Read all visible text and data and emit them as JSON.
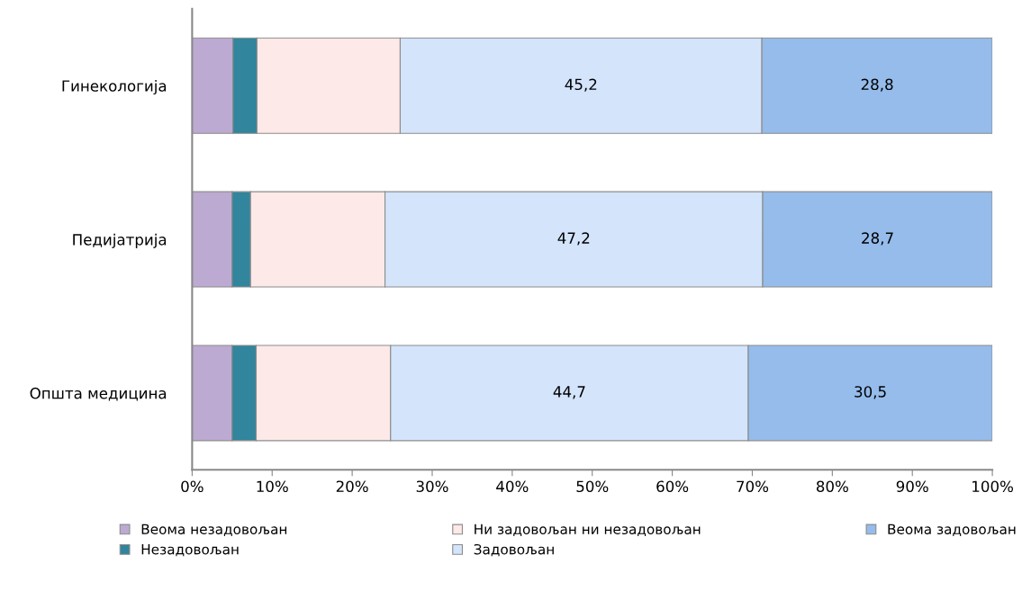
{
  "chart_data": {
    "type": "bar",
    "orientation": "horizontal",
    "stacked": true,
    "categories": [
      "Гинекологија",
      "Педијатрија",
      "Општа медицина"
    ],
    "series": [
      {
        "name": "Веома незадовољан",
        "color": "#bcaad2",
        "values": [
          5.1,
          5.0,
          5.0
        ]
      },
      {
        "name": "Незадовољан",
        "color": "#31859c",
        "values": [
          3.0,
          2.3,
          3.0
        ]
      },
      {
        "name": "Ни задовољан ни незадовољан",
        "color": "#fde9e7",
        "values": [
          17.9,
          16.8,
          16.8
        ]
      },
      {
        "name": "Задовољан",
        "color": "#d3e4fb",
        "values": [
          45.2,
          47.2,
          44.7
        ],
        "value_labels": [
          "45,2",
          "47,2",
          "44,7"
        ]
      },
      {
        "name": "Веома задовољан",
        "color": "#95bceb",
        "values": [
          28.8,
          28.7,
          30.5
        ],
        "value_labels": [
          "28,8",
          "28,7",
          "30,5"
        ]
      }
    ],
    "xlim": [
      0,
      100
    ],
    "xticks": [
      {
        "value": 0,
        "label": "0%"
      },
      {
        "value": 10,
        "label": "10%"
      },
      {
        "value": 20,
        "label": "20%"
      },
      {
        "value": 30,
        "label": "30%"
      },
      {
        "value": 40,
        "label": "40%"
      },
      {
        "value": 50,
        "label": "50%"
      },
      {
        "value": 60,
        "label": "60%"
      },
      {
        "value": 70,
        "label": "70%"
      },
      {
        "value": 80,
        "label": "80%"
      },
      {
        "value": 90,
        "label": "90%"
      },
      {
        "value": 100,
        "label": "100%"
      }
    ],
    "grid": false,
    "legend": "bottom"
  }
}
